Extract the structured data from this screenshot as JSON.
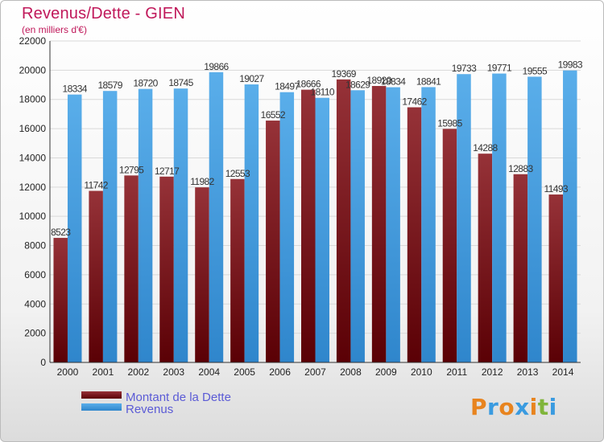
{
  "title": "Revenus/Dette - GIEN",
  "subtitle": "(en milliers d'€)",
  "legend": [
    {
      "label": "Montant de la Dette",
      "color": "#7a0f14"
    },
    {
      "label": "Revenus",
      "color": "#3a9be0"
    }
  ],
  "logo": {
    "letters": [
      "P",
      "r",
      "o",
      "x",
      "i",
      "t",
      "i"
    ],
    "colors": [
      "#e8841f",
      "#3a9be0",
      "#e8841f",
      "#3a9be0",
      "#e8841f",
      "#80b53b",
      "#3a9be0"
    ]
  },
  "chart_data": {
    "type": "bar",
    "categories": [
      "2000",
      "2001",
      "2002",
      "2003",
      "2004",
      "2005",
      "2006",
      "2007",
      "2008",
      "2009",
      "2010",
      "2011",
      "2012",
      "2013",
      "2014"
    ],
    "series": [
      {
        "name": "Montant de la Dette",
        "values": [
          8523,
          11742,
          12795,
          12717,
          11982,
          12553,
          16552,
          18666,
          19369,
          18920,
          17462,
          15985,
          14288,
          12883,
          11493
        ],
        "labels": [
          "8523",
          "11742",
          "12795",
          "12717",
          "11982",
          "12553",
          "16552",
          "18666",
          "19369",
          "18920",
          "17462",
          "15985",
          "14288",
          "12883",
          "11493"
        ],
        "color": "#7a0f14"
      },
      {
        "name": "Revenus",
        "values": [
          18334,
          18579,
          18720,
          18745,
          19866,
          19027,
          18497,
          18110,
          18629,
          18834,
          18841,
          19733,
          19771,
          19555,
          19983
        ],
        "labels": [
          "18334",
          "18579",
          "18720",
          "18745",
          "19866",
          "19027",
          "18497",
          "18110",
          "18629",
          "18834",
          "18841",
          "19733",
          "19771",
          "19555",
          "19983"
        ],
        "color": "#3a9be0"
      }
    ],
    "ylim": [
      0,
      22000
    ],
    "yticks": [
      0,
      2000,
      4000,
      6000,
      8000,
      10000,
      12000,
      14000,
      16000,
      18000,
      20000,
      22000
    ],
    "grid": true
  }
}
